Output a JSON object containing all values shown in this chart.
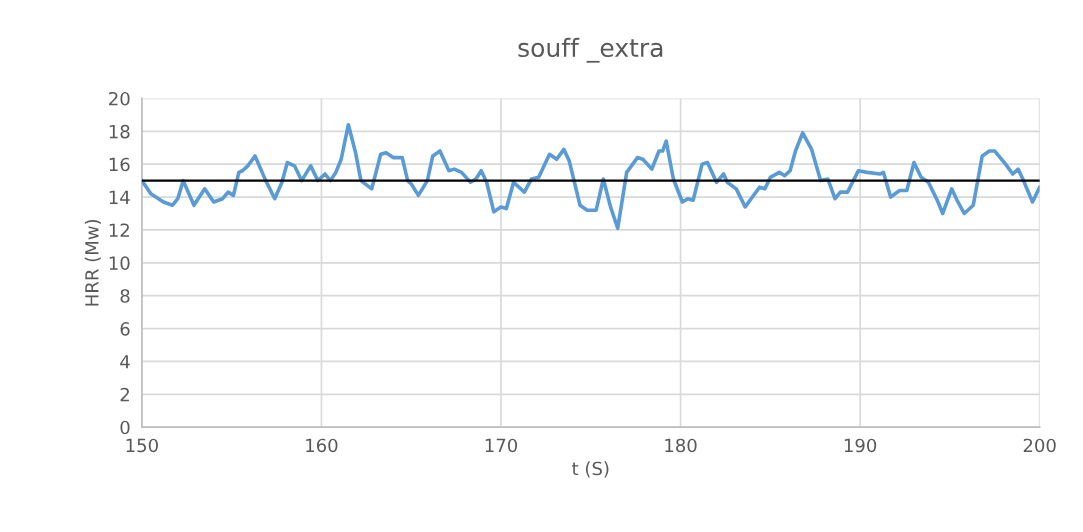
{
  "chart_data": {
    "type": "line",
    "title": "souff _extra",
    "xlabel": "t (S)",
    "ylabel": "HRR (Mw)",
    "xlim": [
      150,
      200
    ],
    "xticks": [
      150,
      160,
      170,
      180,
      190,
      200
    ],
    "ylim": [
      0,
      20
    ],
    "yticks": [
      0,
      2,
      4,
      6,
      8,
      10,
      12,
      14,
      16,
      18,
      20
    ],
    "grid": true,
    "legend": false,
    "ref_lines": [
      {
        "axis": "y",
        "value": 15,
        "color": "#000000"
      }
    ],
    "series": [
      {
        "color": "#5b9bd5",
        "x": [
          150.0,
          150.5,
          151.2,
          151.7,
          152.0,
          152.3,
          152.9,
          153.5,
          154.0,
          154.5,
          154.8,
          155.1,
          155.4,
          155.6,
          155.9,
          156.3,
          156.9,
          157.4,
          157.8,
          158.1,
          158.5,
          158.9,
          159.4,
          159.8,
          160.2,
          160.5,
          160.8,
          161.1,
          161.5,
          161.9,
          162.2,
          162.8,
          163.3,
          163.6,
          164.0,
          164.5,
          164.8,
          165.0,
          165.4,
          165.9,
          166.2,
          166.6,
          167.1,
          167.4,
          167.8,
          168.3,
          168.6,
          168.9,
          169.2,
          169.6,
          170.0,
          170.3,
          170.7,
          171.3,
          171.7,
          172.1,
          172.7,
          173.1,
          173.5,
          173.8,
          174.4,
          174.8,
          175.3,
          175.7,
          176.1,
          176.5,
          177.0,
          177.6,
          177.9,
          178.4,
          178.8,
          179.0,
          179.2,
          179.6,
          180.1,
          180.4,
          180.7,
          181.2,
          181.5,
          182.0,
          182.4,
          182.6,
          183.1,
          183.6,
          184.0,
          184.4,
          184.7,
          185.0,
          185.5,
          185.8,
          186.1,
          186.4,
          186.8,
          187.3,
          187.8,
          188.2,
          188.6,
          188.9,
          189.3,
          189.9,
          190.4,
          191.1,
          191.3,
          191.7,
          192.2,
          192.6,
          193.0,
          193.4,
          193.8,
          194.3,
          194.6,
          195.1,
          195.4,
          195.8,
          196.3,
          196.8,
          197.2,
          197.5,
          198.1,
          198.5,
          198.8,
          199.1,
          199.6,
          200.0
        ],
        "values": [
          15.0,
          14.2,
          13.7,
          13.5,
          13.9,
          15.0,
          13.5,
          14.5,
          13.7,
          13.9,
          14.3,
          14.1,
          15.5,
          15.6,
          15.9,
          16.5,
          15.0,
          13.9,
          14.9,
          16.1,
          15.9,
          15.0,
          15.9,
          15.0,
          15.4,
          15.0,
          15.5,
          16.3,
          18.4,
          16.7,
          15.0,
          14.5,
          16.6,
          16.7,
          16.4,
          16.4,
          15.0,
          14.8,
          14.1,
          15.0,
          16.5,
          16.8,
          15.6,
          15.7,
          15.5,
          14.9,
          15.1,
          15.6,
          14.9,
          13.1,
          13.4,
          13.3,
          14.9,
          14.3,
          15.1,
          15.2,
          16.6,
          16.3,
          16.9,
          16.2,
          13.5,
          13.2,
          13.2,
          15.1,
          13.4,
          12.1,
          15.5,
          16.4,
          16.3,
          15.7,
          16.8,
          16.8,
          17.4,
          15.1,
          13.7,
          13.9,
          13.8,
          16.0,
          16.1,
          14.9,
          15.4,
          14.9,
          14.5,
          13.4,
          14.0,
          14.6,
          14.5,
          15.2,
          15.5,
          15.3,
          15.6,
          16.8,
          17.9,
          16.9,
          15.0,
          15.1,
          13.9,
          14.3,
          14.3,
          15.6,
          15.5,
          15.4,
          15.5,
          14.0,
          14.4,
          14.4,
          16.1,
          15.2,
          14.9,
          13.8,
          13.0,
          14.5,
          13.8,
          13.0,
          13.5,
          16.5,
          16.8,
          16.8,
          16.0,
          15.4,
          15.7,
          15.0,
          13.7,
          14.6
        ]
      }
    ]
  }
}
